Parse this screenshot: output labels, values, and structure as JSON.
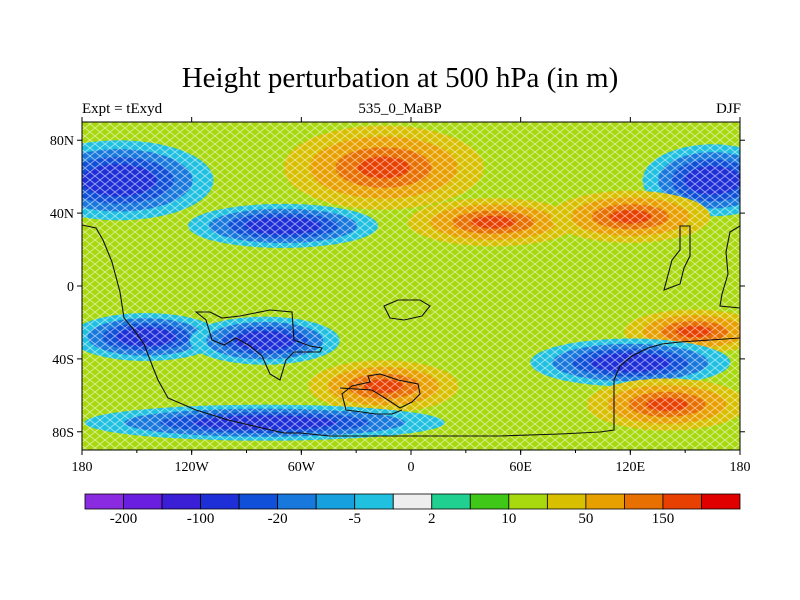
{
  "title": "Height perturbation at 500 hPa (in m)",
  "subtitle_left": "Expt = tExyd",
  "subtitle_center": "535_0_MaBP",
  "subtitle_right": "DJF",
  "map": {
    "lon_ticks": [
      "180",
      "120W",
      "60W",
      "0",
      "60E",
      "120E",
      "180"
    ],
    "lat_ticks": [
      "80N",
      "40N",
      "0",
      "40S",
      "80S"
    ],
    "field_anomalies": [
      {
        "name": "low",
        "lon": -160,
        "lat": 58
      },
      {
        "name": "low",
        "lon": 165,
        "lat": 58
      },
      {
        "name": "high",
        "lon": -15,
        "lat": 65
      },
      {
        "name": "low",
        "lon": -70,
        "lat": 33
      },
      {
        "name": "high",
        "lon": 45,
        "lat": 35
      },
      {
        "name": "high",
        "lon": 120,
        "lat": 38
      },
      {
        "name": "low",
        "lon": -145,
        "lat": -28
      },
      {
        "name": "low",
        "lon": -80,
        "lat": -30
      },
      {
        "name": "high",
        "lon": 155,
        "lat": -25
      },
      {
        "name": "high",
        "lon": -15,
        "lat": -55
      },
      {
        "name": "low",
        "lon": 120,
        "lat": -42
      },
      {
        "name": "high",
        "lon": 140,
        "lat": -65
      },
      {
        "name": "low",
        "lon": -80,
        "lat": -75
      }
    ]
  },
  "colorbar": {
    "colors": [
      "#8a2be2",
      "#6a1fe0",
      "#3a1fd6",
      "#1e2fd8",
      "#1050d8",
      "#1878dc",
      "#16a0de",
      "#20c0e0",
      "#eeeeee",
      "#20d090",
      "#40c818",
      "#a8d80e",
      "#d8c000",
      "#e8a000",
      "#e87000",
      "#e84000",
      "#e00000"
    ],
    "labels": [
      "-200",
      "-100",
      "-20",
      "-5",
      "2",
      "10",
      "50",
      "150"
    ]
  }
}
